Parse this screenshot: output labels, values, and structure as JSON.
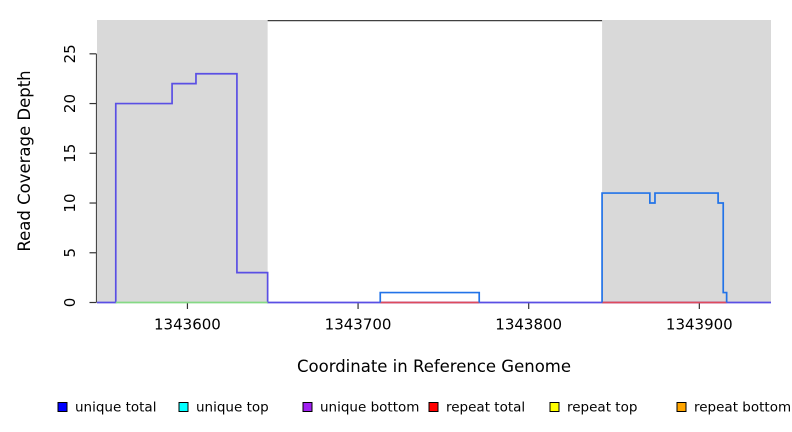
{
  "chart_data": {
    "type": "line",
    "title": "",
    "xlabel": "Coordinate in Reference Genome",
    "ylabel": "Read Coverage Depth",
    "xlim": [
      1343547,
      1343942
    ],
    "ylim": [
      0,
      28.4
    ],
    "x_ticks": [
      1343600,
      1343700,
      1343800,
      1343900
    ],
    "y_ticks": [
      0,
      5,
      10,
      15,
      20,
      25
    ],
    "grid": false,
    "legend_position": "bottom",
    "repeat_region_fill": "#D9D9D9",
    "repeat_regions": [
      {
        "name": "left-repeat-region",
        "start": 1343547,
        "end": 1343647
      },
      {
        "name": "right-repeat-region",
        "start": 1343843,
        "end": 1343942
      }
    ],
    "segments": [
      {
        "name": "unique-coverage-left-block-and-baseline",
        "color": "#5A4FE4",
        "points": [
          [
            1343547,
            0
          ],
          [
            1343558,
            0
          ],
          [
            1343558,
            20
          ],
          [
            1343591,
            20
          ],
          [
            1343591,
            22
          ],
          [
            1343605,
            22
          ],
          [
            1343605,
            23
          ],
          [
            1343629,
            23
          ],
          [
            1343629,
            3
          ],
          [
            1343647,
            3
          ],
          [
            1343647,
            0
          ],
          [
            1343942,
            0
          ]
        ]
      },
      {
        "name": "repeat-region-green-baseline",
        "color": "#85D985",
        "points": [
          [
            1343558,
            0
          ],
          [
            1343647,
            0
          ]
        ]
      },
      {
        "name": "repeat-total-red-baseline-under-bump",
        "color": "#DE4B5C",
        "points": [
          [
            1343713,
            0
          ],
          [
            1343771,
            0
          ]
        ]
      },
      {
        "name": "repeat-total-red-baseline-right-region",
        "color": "#DE4B5C",
        "points": [
          [
            1343843,
            0
          ],
          [
            1343916,
            0
          ]
        ]
      },
      {
        "name": "unique-total-middle-bump",
        "color": "#2273E8",
        "points": [
          [
            1343713,
            0
          ],
          [
            1343713,
            1
          ],
          [
            1343771,
            1
          ],
          [
            1343771,
            0
          ]
        ]
      },
      {
        "name": "unique-total-right-block",
        "color": "#2273E8",
        "points": [
          [
            1343843,
            0
          ],
          [
            1343843,
            11
          ],
          [
            1343871,
            11
          ],
          [
            1343871,
            10
          ],
          [
            1343874,
            10
          ],
          [
            1343874,
            11
          ],
          [
            1343911,
            11
          ],
          [
            1343911,
            10
          ],
          [
            1343914,
            10
          ],
          [
            1343914,
            1
          ],
          [
            1343916,
            1
          ],
          [
            1343916,
            0
          ]
        ]
      }
    ],
    "legend": [
      {
        "label": "unique total",
        "color": "#0000FF"
      },
      {
        "label": "unique top",
        "color": "#00FFFF"
      },
      {
        "label": "unique bottom",
        "color": "#A020F0"
      },
      {
        "label": "repeat total",
        "color": "#FF0000"
      },
      {
        "label": "repeat top",
        "color": "#FFFF00"
      },
      {
        "label": "repeat bottom",
        "color": "#FFA500"
      }
    ]
  }
}
